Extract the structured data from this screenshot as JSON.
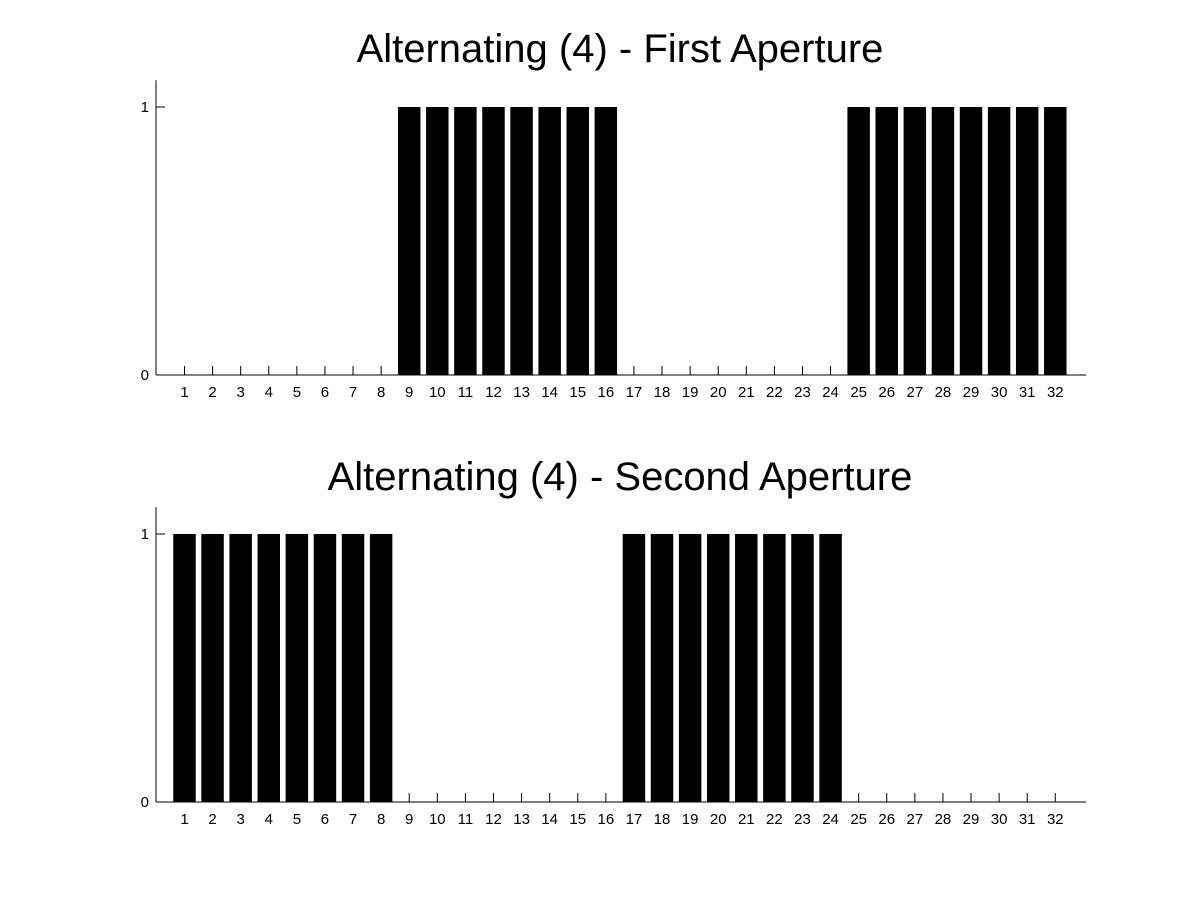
{
  "figure": {
    "background": "#ffffff",
    "bar_color": "#000000"
  },
  "chart_data": [
    {
      "type": "bar",
      "title": "Alternating (4) - First Aperture",
      "xlabel": "",
      "ylabel": "",
      "categories": [
        "1",
        "2",
        "3",
        "4",
        "5",
        "6",
        "7",
        "8",
        "9",
        "10",
        "11",
        "12",
        "13",
        "14",
        "15",
        "16",
        "17",
        "18",
        "19",
        "20",
        "21",
        "22",
        "23",
        "24",
        "25",
        "26",
        "27",
        "28",
        "29",
        "30",
        "31",
        "32"
      ],
      "values": [
        0,
        0,
        0,
        0,
        0,
        0,
        0,
        0,
        1,
        1,
        1,
        1,
        1,
        1,
        1,
        1,
        0,
        0,
        0,
        0,
        0,
        0,
        0,
        0,
        1,
        1,
        1,
        1,
        1,
        1,
        1,
        1
      ],
      "ylim": [
        0,
        1.1
      ],
      "yticks": [
        "0",
        "1"
      ],
      "grid": false,
      "legend": "none"
    },
    {
      "type": "bar",
      "title": "Alternating (4) - Second Aperture",
      "xlabel": "",
      "ylabel": "",
      "categories": [
        "1",
        "2",
        "3",
        "4",
        "5",
        "6",
        "7",
        "8",
        "9",
        "10",
        "11",
        "12",
        "13",
        "14",
        "15",
        "16",
        "17",
        "18",
        "19",
        "20",
        "21",
        "22",
        "23",
        "24",
        "25",
        "26",
        "27",
        "28",
        "29",
        "30",
        "31",
        "32"
      ],
      "values": [
        1,
        1,
        1,
        1,
        1,
        1,
        1,
        1,
        0,
        0,
        0,
        0,
        0,
        0,
        0,
        0,
        1,
        1,
        1,
        1,
        1,
        1,
        1,
        1,
        0,
        0,
        0,
        0,
        0,
        0,
        0,
        0
      ],
      "ylim": [
        0,
        1.1
      ],
      "yticks": [
        "0",
        "1"
      ],
      "grid": false,
      "legend": "none"
    }
  ]
}
